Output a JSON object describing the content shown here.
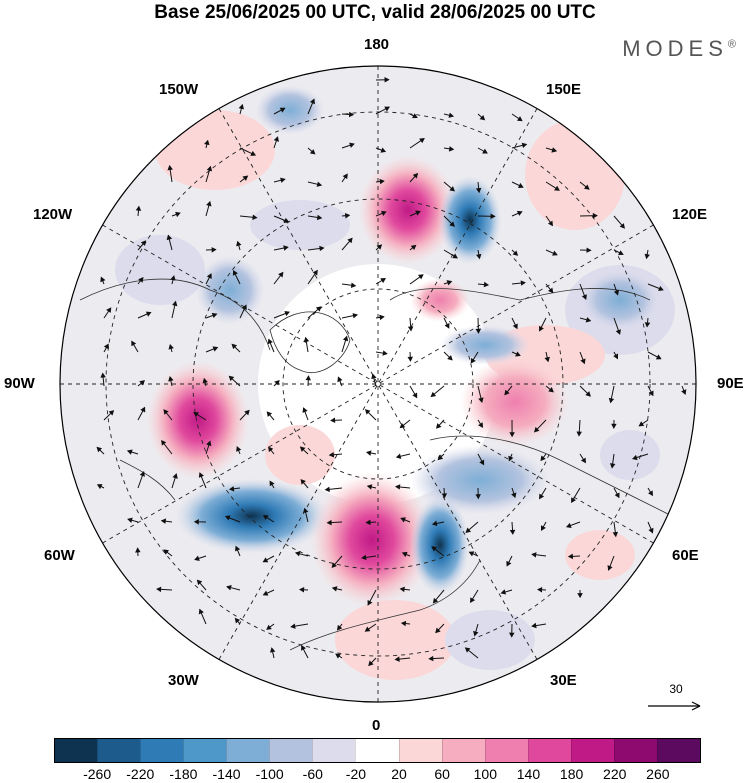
{
  "header": {
    "title": "Base 25/06/2025 00 UTC, valid 28/06/2025 00 UTC",
    "brand": "MODES",
    "brand_mark": "®"
  },
  "map": {
    "projection": "north-polar-stereographic",
    "longitude_labels": {
      "top": "180",
      "bottom": "0",
      "left": "90W",
      "right": "90E",
      "upper_left_1": "150W",
      "upper_left_2": "120W",
      "upper_right_1": "150E",
      "upper_right_2": "120E",
      "lower_left_1": "60W",
      "lower_left_2": "30W",
      "lower_right_1": "60E",
      "lower_right_2": "30E"
    },
    "reference_vector": {
      "label": "30"
    }
  },
  "colorbar": {
    "colors": [
      "#0e3350",
      "#1c5b8b",
      "#2f7bb6",
      "#4d97c9",
      "#7eaed6",
      "#b3c3df",
      "#dcdcec",
      "#ffffff",
      "#fbd7d8",
      "#f5adbf",
      "#ef7fae",
      "#e0489d",
      "#c01a86",
      "#8e0a6f",
      "#5b0a60"
    ],
    "ticks": [
      "-260",
      "-220",
      "-180",
      "-140",
      "-100",
      "-60",
      "-20",
      "20",
      "60",
      "100",
      "140",
      "180",
      "220",
      "260"
    ]
  }
}
